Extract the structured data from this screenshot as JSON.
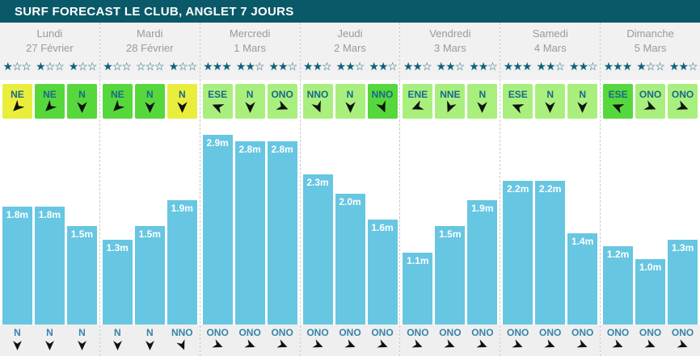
{
  "header": {
    "title": "SURF FORECAST LE CLUB, ANGLET 7 JOURS"
  },
  "colors": {
    "header_bg": "#0a5968",
    "panel_bg": "#f1f1f1",
    "star": "#0e617c",
    "bar": "#67c6e1",
    "wind_yellow": "#e9ee3d",
    "wind_green": "#56d83d",
    "wind_light_green": "#a9ef7d",
    "wind_text": "#19688a",
    "swell_text": "#3585aa",
    "day_text": "#9a9a9a",
    "swell_bg": "#efefef"
  },
  "chart_data": {
    "type": "bar",
    "unit": "m",
    "ylim": [
      0,
      3
    ],
    "value_label_position": "inside-top",
    "legend": "none",
    "days": [
      {
        "name": "Lundi",
        "date": "27 Février",
        "stars": [
          1,
          1,
          1
        ],
        "wind": [
          {
            "dir": "NE",
            "quality": "yellow"
          },
          {
            "dir": "NE",
            "quality": "green"
          },
          {
            "dir": "N",
            "quality": "green"
          }
        ],
        "waves": [
          1.8,
          1.8,
          1.5
        ],
        "wave_labels": [
          "1.8m",
          "1.8m",
          "1.5m"
        ],
        "swell": [
          "N",
          "N",
          "N"
        ]
      },
      {
        "name": "Mardi",
        "date": "28 Février",
        "stars": [
          1,
          0,
          1
        ],
        "wind": [
          {
            "dir": "NE",
            "quality": "green"
          },
          {
            "dir": "N",
            "quality": "green"
          },
          {
            "dir": "N",
            "quality": "yellow"
          }
        ],
        "waves": [
          1.3,
          1.5,
          1.9
        ],
        "wave_labels": [
          "1.3m",
          "1.5m",
          "1.9m"
        ],
        "swell": [
          "N",
          "N",
          "NNO"
        ]
      },
      {
        "name": "Mercredi",
        "date": "1 Mars",
        "stars": [
          3,
          2,
          2
        ],
        "wind": [
          {
            "dir": "ESE",
            "quality": "light_green"
          },
          {
            "dir": "N",
            "quality": "light_green"
          },
          {
            "dir": "ONO",
            "quality": "light_green"
          }
        ],
        "waves": [
          2.9,
          2.8,
          2.8
        ],
        "wave_labels": [
          "2.9m",
          "2.8m",
          "2.8m"
        ],
        "swell": [
          "ONO",
          "ONO",
          "ONO"
        ]
      },
      {
        "name": "Jeudi",
        "date": "2 Mars",
        "stars": [
          2,
          2,
          2
        ],
        "wind": [
          {
            "dir": "NNO",
            "quality": "light_green"
          },
          {
            "dir": "N",
            "quality": "light_green"
          },
          {
            "dir": "NNO",
            "quality": "green"
          }
        ],
        "waves": [
          2.3,
          2.0,
          1.6
        ],
        "wave_labels": [
          "2.3m",
          "2.0m",
          "1.6m"
        ],
        "swell": [
          "ONO",
          "ONO",
          "ONO"
        ]
      },
      {
        "name": "Vendredi",
        "date": "3 Mars",
        "stars": [
          2,
          2,
          2
        ],
        "wind": [
          {
            "dir": "ENE",
            "quality": "light_green"
          },
          {
            "dir": "NNE",
            "quality": "light_green"
          },
          {
            "dir": "N",
            "quality": "light_green"
          }
        ],
        "waves": [
          1.1,
          1.5,
          1.9
        ],
        "wave_labels": [
          "1.1m",
          "1.5m",
          "1.9m"
        ],
        "swell": [
          "ONO",
          "ONO",
          "ONO"
        ]
      },
      {
        "name": "Samedi",
        "date": "4 Mars",
        "stars": [
          3,
          2,
          2
        ],
        "wind": [
          {
            "dir": "ESE",
            "quality": "light_green"
          },
          {
            "dir": "N",
            "quality": "light_green"
          },
          {
            "dir": "N",
            "quality": "light_green"
          }
        ],
        "waves": [
          2.2,
          2.2,
          1.4
        ],
        "wave_labels": [
          "2.2m",
          "2.2m",
          "1.4m"
        ],
        "swell": [
          "ONO",
          "ONO",
          "ONO"
        ]
      },
      {
        "name": "Dimanche",
        "date": "5 Mars",
        "stars": [
          3,
          1,
          2
        ],
        "wind": [
          {
            "dir": "ESE",
            "quality": "green"
          },
          {
            "dir": "ONO",
            "quality": "light_green"
          },
          {
            "dir": "ONO",
            "quality": "light_green"
          }
        ],
        "waves": [
          1.2,
          1.0,
          1.3
        ],
        "wave_labels": [
          "1.2m",
          "1.0m",
          "1.3m"
        ],
        "swell": [
          "ONO",
          "ONO",
          "ONO"
        ]
      }
    ]
  }
}
